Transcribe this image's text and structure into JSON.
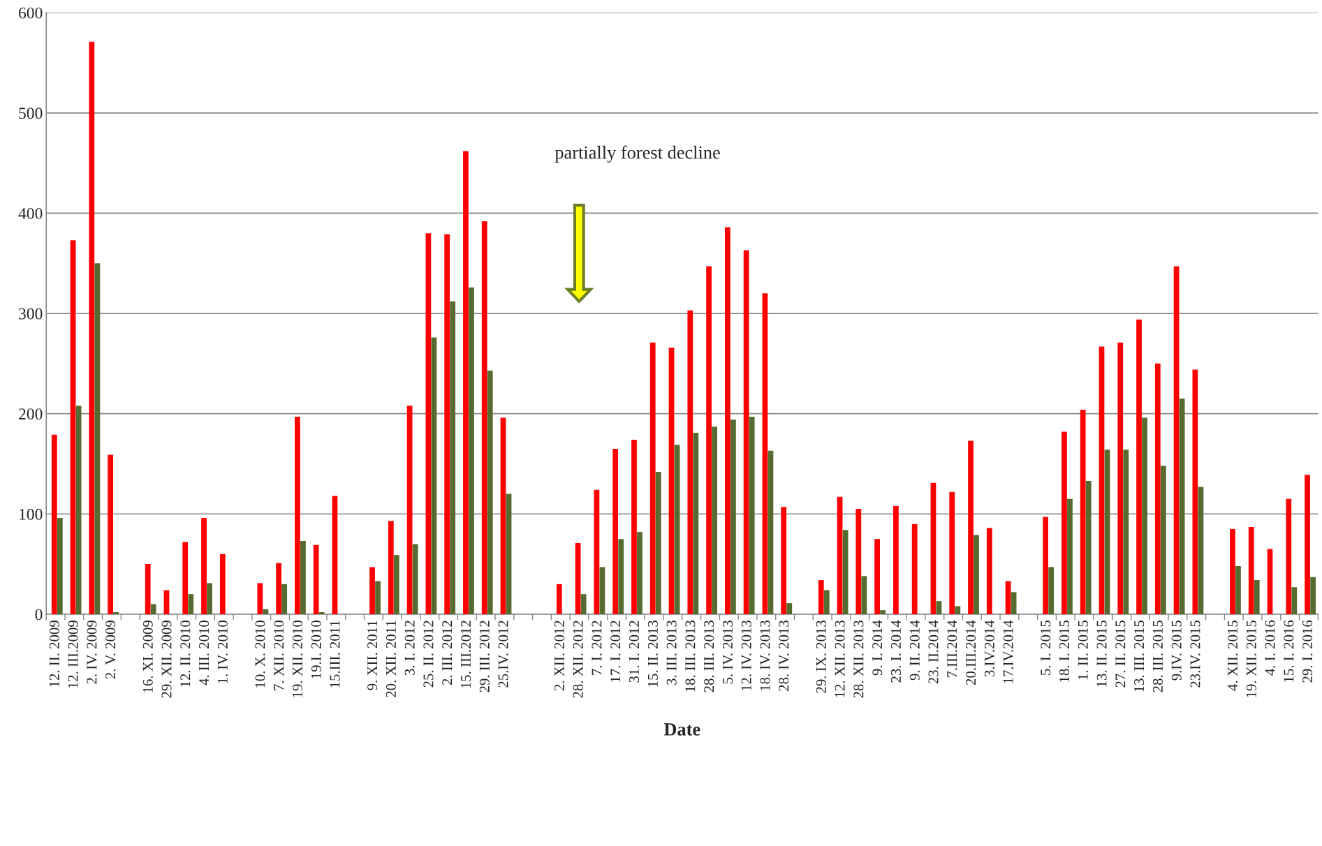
{
  "chart_data": {
    "type": "bar",
    "xlabel": "Date",
    "categories": [
      "12. II. 2009",
      "12. III.2009",
      "2. IV. 2009",
      "2. V. 2009",
      null,
      "16. XI. 2009",
      "29. XII. 2009",
      "12. II. 2010",
      "4. III. 2010",
      "1. IV. 2010",
      null,
      "10. X. 2010",
      "7. XII. 2010",
      "19. XII. 2010",
      "19.I. 2010",
      "15.III. 2011",
      null,
      "9. XII. 2011",
      "20. XII. 2011",
      "3. I. 2012",
      "25. II. 2012",
      "2. III. 2012",
      "15. III.2012",
      "29. III. 2012",
      "25.IV. 2012",
      null,
      null,
      "2. XII. 2012",
      "28. XII. 2012",
      "7. I. 2012",
      "17. I. 2012",
      "31. I. 2012",
      "15. II. 2013",
      "3. III. 2013",
      "18. III. 2013",
      "28. III. 2013",
      "5. IV. 2013",
      "12. IV. 2013",
      "18. IV. 2013",
      "28. IV. 2013",
      null,
      "29. IX. 2013",
      "12. XII. 2013",
      "28. XII. 2013",
      "9. I. 2014",
      "23. I. 2014",
      "9. II. 2014",
      "23. II.2014",
      "7.III.2014",
      "20.III.2014",
      "3.IV.2014",
      "17.IV.2014",
      null,
      "5. I. 2015",
      "18. I. 2015",
      "1. II. 2015",
      "13. II. 2015",
      "27. II. 2015",
      "13. III. 2015",
      "28. III. 2015",
      "9.IV. 2015",
      "23.IV. 2015",
      null,
      "4. XII. 2015",
      "19. XII. 2015",
      "4. I. 2016",
      "15. I. 2016",
      "29. I. 2016"
    ],
    "series": [
      {
        "color": "#ff0000",
        "values": [
          179,
          373,
          571,
          159,
          null,
          50,
          24,
          72,
          96,
          60,
          null,
          31,
          51,
          197,
          69,
          118,
          null,
          47,
          93,
          208,
          380,
          379,
          462,
          392,
          196,
          null,
          null,
          30,
          71,
          124,
          165,
          174,
          271,
          266,
          303,
          347,
          386,
          363,
          320,
          107,
          null,
          34,
          117,
          105,
          75,
          108,
          90,
          131,
          122,
          173,
          86,
          33,
          null,
          97,
          182,
          204,
          267,
          271,
          294,
          250,
          347,
          244,
          null,
          85,
          87,
          65,
          115,
          139
        ]
      },
      {
        "color": "#556b2f",
        "values": [
          96,
          208,
          350,
          2,
          null,
          10,
          null,
          20,
          31,
          null,
          null,
          5,
          30,
          73,
          2,
          null,
          null,
          33,
          59,
          70,
          276,
          312,
          326,
          243,
          120,
          null,
          null,
          null,
          20,
          47,
          75,
          82,
          142,
          169,
          181,
          187,
          194,
          197,
          163,
          11,
          null,
          24,
          84,
          38,
          4,
          null,
          null,
          13,
          8,
          79,
          null,
          22,
          null,
          47,
          115,
          133,
          164,
          164,
          196,
          148,
          215,
          127,
          null,
          48,
          34,
          null,
          27,
          37
        ]
      }
    ],
    "ylim": [
      0,
      600
    ],
    "yticks": [
      0,
      100,
      200,
      300,
      400,
      500,
      600
    ],
    "grid": "y",
    "annotations": [
      "partially forest decline"
    ]
  }
}
